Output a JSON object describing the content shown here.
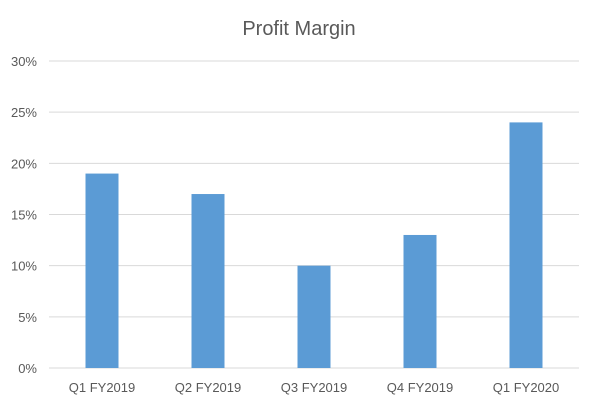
{
  "chart_data": {
    "type": "bar",
    "title": "Profit Margin",
    "xlabel": "",
    "ylabel": "",
    "categories": [
      "Q1 FY2019",
      "Q2 FY2019",
      "Q3 FY2019",
      "Q4 FY2019",
      "Q1 FY2020"
    ],
    "values": [
      19,
      17,
      10,
      13,
      24
    ],
    "value_unit": "%",
    "ylim": [
      0,
      30
    ],
    "yticks": [
      0,
      5,
      10,
      15,
      20,
      25,
      30
    ],
    "ytick_labels": [
      "0%",
      "5%",
      "10%",
      "15%",
      "20%",
      "25%",
      "30%"
    ],
    "grid": true,
    "legend": "none",
    "bar_color": "#5b9bd5",
    "grid_color": "#d9d9d9",
    "text_color": "#595959"
  }
}
